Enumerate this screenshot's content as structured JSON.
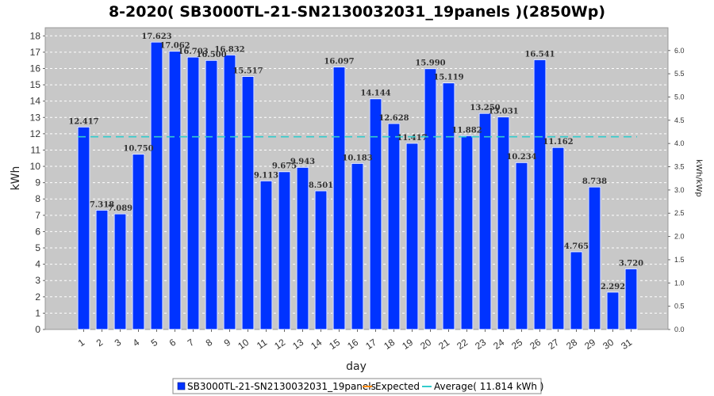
{
  "chart_data": {
    "type": "bar",
    "title": "8-2020( SB3000TL-21-SN2130032031_19panels )(2850Wp)",
    "xlabel": "day",
    "ylabel": "kWh",
    "ylabel_right": "kWh/kWp",
    "ylim": [
      0,
      18.5
    ],
    "ylim_right": [
      0,
      6.49
    ],
    "yticks": [
      0,
      1,
      2,
      3,
      4,
      5,
      6,
      7,
      8,
      9,
      10,
      11,
      12,
      13,
      14,
      15,
      16,
      17,
      18
    ],
    "yticks_right": [
      "0.0",
      "0.5",
      "1.0",
      "1.5",
      "2.0",
      "2.5",
      "3.0",
      "3.5",
      "4.0",
      "4.5",
      "5.0",
      "5.5",
      "6.0"
    ],
    "grid": true,
    "legend_position": "bottom",
    "categories": [
      "1",
      "2",
      "3",
      "4",
      "5",
      "6",
      "7",
      "8",
      "9",
      "10",
      "11",
      "12",
      "13",
      "14",
      "15",
      "16",
      "17",
      "18",
      "19",
      "20",
      "21",
      "22",
      "23",
      "24",
      "25",
      "26",
      "27",
      "28",
      "29",
      "30",
      "31"
    ],
    "series": [
      {
        "name": "SB3000TL-21-SN2130032031_19panels",
        "color": "#0033ff",
        "values": [
          12.417,
          7.318,
          7.089,
          10.75,
          17.623,
          17.062,
          16.703,
          16.5,
          16.832,
          15.517,
          9.113,
          9.675,
          9.943,
          8.501,
          16.097,
          10.183,
          14.144,
          12.628,
          11.417,
          15.99,
          15.119,
          11.882,
          13.25,
          13.031,
          10.234,
          16.541,
          11.162,
          4.765,
          8.738,
          2.292,
          3.72
        ],
        "labels": [
          "12.417",
          "7.318",
          "7.089",
          "10.750",
          "17.623",
          "17.062",
          "16.703",
          "16.500",
          "16.832",
          "15.517",
          "9.113",
          "9.675",
          "9.943",
          "8.501",
          "16.097",
          "10.183",
          "14.144",
          "12.628",
          "11.417",
          "15.990",
          "15.119",
          "11.882",
          "13.250",
          "13.031",
          "10.234",
          "16.541",
          "11.162",
          "4.765",
          "8.738",
          "2.292",
          "3.720"
        ]
      }
    ],
    "average": {
      "value": 11.814,
      "color": "#33cccc"
    },
    "legend": [
      {
        "label": "SB3000TL-21-SN2130032031_19panels",
        "color": "#0033ff",
        "kind": "box"
      },
      {
        "label": "Expected",
        "color": "#ff8800",
        "kind": "line"
      },
      {
        "label": "Average( 11.814 kWh )",
        "color": "#33cccc",
        "kind": "line"
      }
    ],
    "plot_background": "#c8c8c8"
  }
}
